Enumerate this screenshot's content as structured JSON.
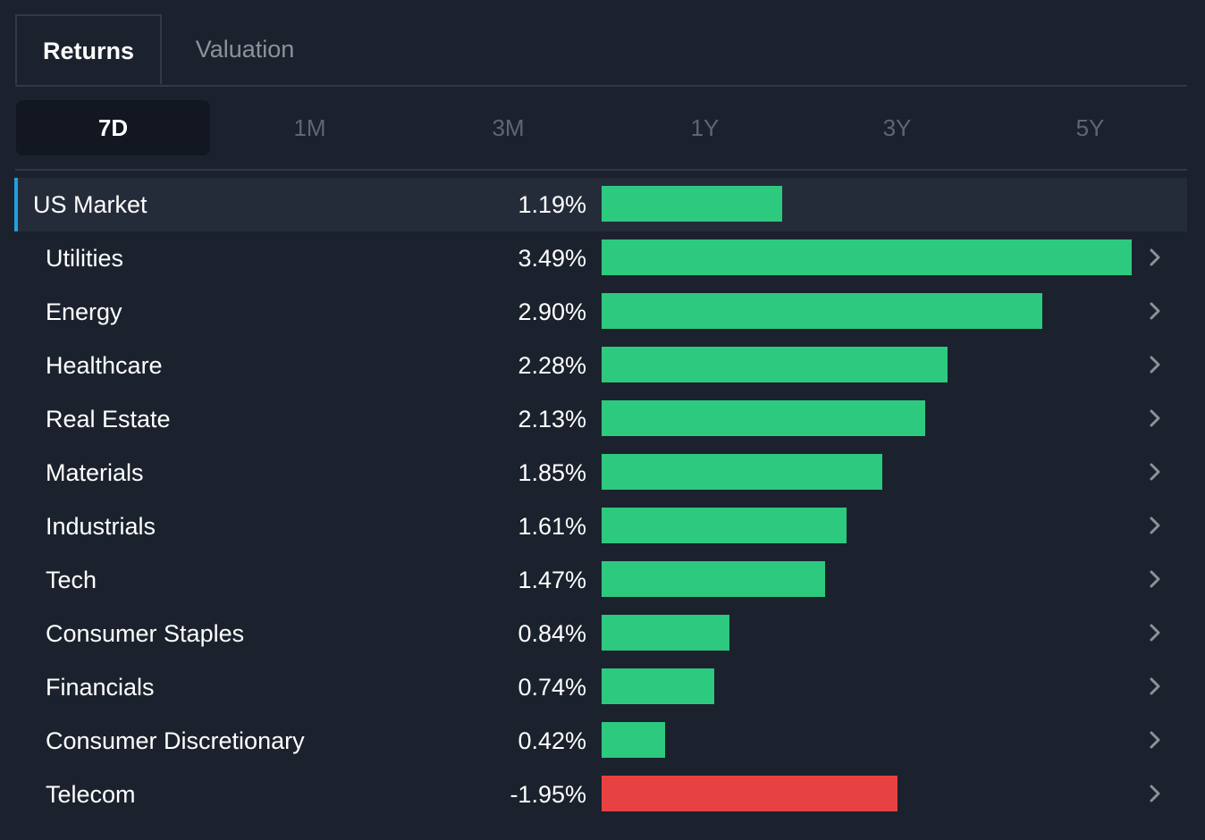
{
  "tabs": [
    {
      "label": "Returns",
      "active": true
    },
    {
      "label": "Valuation",
      "active": false
    }
  ],
  "periods": [
    {
      "label": "7D",
      "active": true
    },
    {
      "label": "1M",
      "active": false
    },
    {
      "label": "3M",
      "active": false
    },
    {
      "label": "1Y",
      "active": false
    },
    {
      "label": "3Y",
      "active": false
    },
    {
      "label": "5Y",
      "active": false
    }
  ],
  "colors": {
    "positive": "#2dc97e",
    "negative": "#e84142",
    "market_accent": "#1fa0e0",
    "chevron": "#8c929b"
  },
  "icons": {
    "row_chevron": "chevron-right-icon"
  },
  "chart_data": {
    "type": "bar",
    "orientation": "horizontal",
    "unit": "%",
    "xlim": [
      0,
      3.49
    ],
    "rows": [
      {
        "name": "US Market",
        "value": 1.19,
        "label": "1.19%",
        "market": true
      },
      {
        "name": "Utilities",
        "value": 3.49,
        "label": "3.49%"
      },
      {
        "name": "Energy",
        "value": 2.9,
        "label": "2.90%"
      },
      {
        "name": "Healthcare",
        "value": 2.28,
        "label": "2.28%"
      },
      {
        "name": "Real Estate",
        "value": 2.13,
        "label": "2.13%"
      },
      {
        "name": "Materials",
        "value": 1.85,
        "label": "1.85%"
      },
      {
        "name": "Industrials",
        "value": 1.61,
        "label": "1.61%"
      },
      {
        "name": "Tech",
        "value": 1.47,
        "label": "1.47%"
      },
      {
        "name": "Consumer Staples",
        "value": 0.84,
        "label": "0.84%"
      },
      {
        "name": "Financials",
        "value": 0.74,
        "label": "0.74%"
      },
      {
        "name": "Consumer Discretionary",
        "value": 0.42,
        "label": "0.42%"
      },
      {
        "name": "Telecom",
        "value": -1.95,
        "label": "-1.95%"
      }
    ]
  }
}
